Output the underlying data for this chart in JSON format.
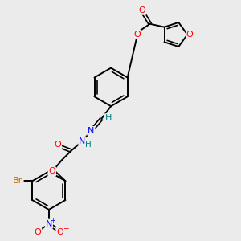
{
  "background_color": "#ebebeb",
  "bond_color": "#000000",
  "atom_colors": {
    "O": "#ff0000",
    "N": "#0000ff",
    "Br": "#cc6600",
    "H_imine": "#008080",
    "H_nh": "#008080"
  },
  "figsize": [
    3.0,
    3.0
  ],
  "dpi": 100
}
